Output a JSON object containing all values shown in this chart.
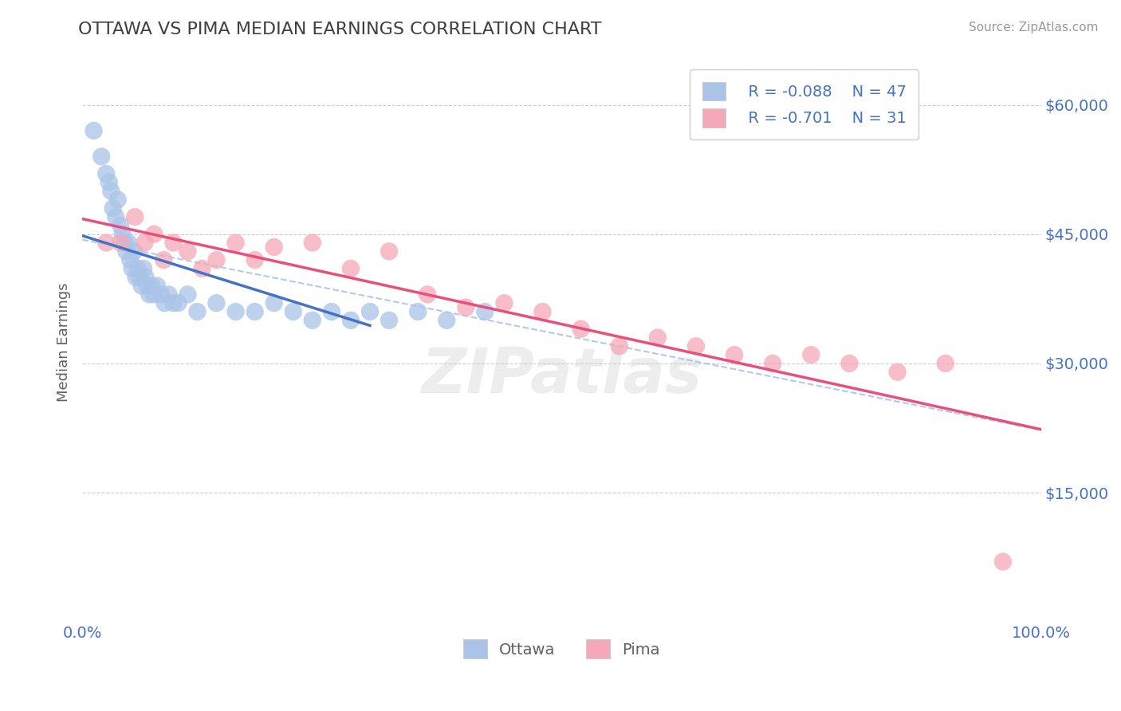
{
  "title": "OTTAWA VS PIMA MEDIAN EARNINGS CORRELATION CHART",
  "source": "Source: ZipAtlas.com",
  "ylabel": "Median Earnings",
  "xlabel": "",
  "xlim": [
    0,
    1.0
  ],
  "ylim": [
    0,
    65000
  ],
  "yticks": [
    0,
    15000,
    30000,
    45000,
    60000
  ],
  "ytick_labels": [
    "",
    "$15,000",
    "$30,000",
    "$45,000",
    "$60,000"
  ],
  "xtick_labels": [
    "0.0%",
    "100.0%"
  ],
  "legend_labels": [
    "Ottawa",
    "Pima"
  ],
  "legend_r": [
    "R = -0.088",
    "R = -0.701"
  ],
  "legend_n": [
    "N = 47",
    "N = 31"
  ],
  "ottawa_color": "#aac4e8",
  "pima_color": "#f5a8b8",
  "ottawa_line_color": "#4472c4",
  "pima_line_color": "#e8507a",
  "dashed_line_color": "#aac4e8",
  "title_color": "#404040",
  "axis_label_color": "#606060",
  "tick_color": "#4472c4",
  "source_color": "#999999",
  "grid_color": "#cccccc",
  "background_color": "#ffffff",
  "ottawa_x": [
    0.012,
    0.02,
    0.025,
    0.028,
    0.03,
    0.032,
    0.035,
    0.037,
    0.04,
    0.042,
    0.044,
    0.046,
    0.048,
    0.05,
    0.052,
    0.054,
    0.056,
    0.058,
    0.06,
    0.062,
    0.064,
    0.066,
    0.068,
    0.07,
    0.072,
    0.075,
    0.078,
    0.082,
    0.086,
    0.09,
    0.095,
    0.1,
    0.11,
    0.12,
    0.14,
    0.16,
    0.18,
    0.2,
    0.22,
    0.24,
    0.26,
    0.28,
    0.3,
    0.32,
    0.35,
    0.38,
    0.42
  ],
  "ottawa_y": [
    57000,
    54000,
    52000,
    51000,
    50000,
    48000,
    47000,
    49000,
    46000,
    45000,
    44000,
    43000,
    44000,
    42000,
    41000,
    43000,
    40000,
    41000,
    40000,
    39000,
    41000,
    40000,
    39000,
    38000,
    39000,
    38000,
    39000,
    38000,
    37000,
    38000,
    37000,
    37000,
    38000,
    36000,
    37000,
    36000,
    36000,
    37000,
    36000,
    35000,
    36000,
    35000,
    36000,
    35000,
    36000,
    35000,
    36000
  ],
  "pima_x": [
    0.025,
    0.04,
    0.055,
    0.065,
    0.075,
    0.085,
    0.095,
    0.11,
    0.125,
    0.14,
    0.16,
    0.18,
    0.2,
    0.24,
    0.28,
    0.32,
    0.36,
    0.4,
    0.44,
    0.48,
    0.52,
    0.56,
    0.6,
    0.64,
    0.68,
    0.72,
    0.76,
    0.8,
    0.85,
    0.9,
    0.96
  ],
  "pima_y": [
    44000,
    44000,
    47000,
    44000,
    45000,
    42000,
    44000,
    43000,
    41000,
    42000,
    44000,
    42000,
    43500,
    44000,
    41000,
    43000,
    38000,
    36500,
    37000,
    36000,
    34000,
    32000,
    33000,
    32000,
    31000,
    30000,
    31000,
    30000,
    29000,
    30000,
    7000
  ]
}
